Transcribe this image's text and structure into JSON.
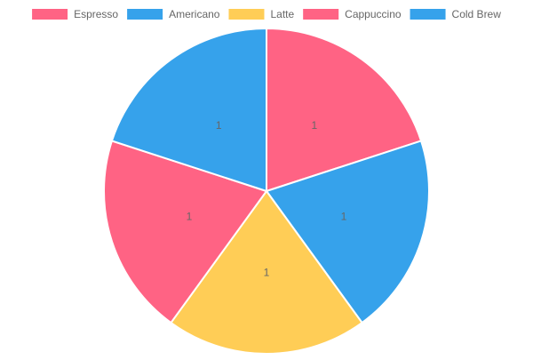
{
  "chart_data": {
    "type": "pie",
    "title": "",
    "legend_position": "top",
    "categories": [
      "Espresso",
      "Americano",
      "Latte",
      "Cappuccino",
      "Cold Brew"
    ],
    "values": [
      1,
      1,
      1,
      1,
      1
    ],
    "colors": [
      "#ff6384",
      "#36a2eb",
      "#ffcd56",
      "#ff6384",
      "#36a2eb"
    ],
    "data_labels": [
      "1",
      "1",
      "1",
      "1",
      "1"
    ],
    "slice_border_color": "#ffffff",
    "label_color": "#666666",
    "legend_text_color": "#666666"
  }
}
